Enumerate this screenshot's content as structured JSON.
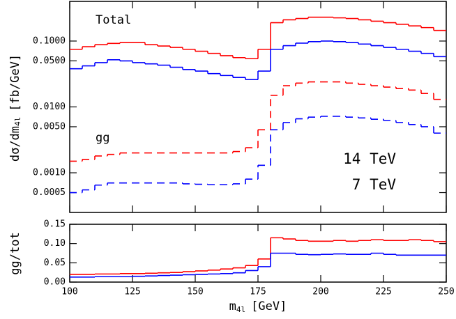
{
  "chart_data": [
    {
      "type": "histogram",
      "ylabel": "dσ/dm",
      "ylabel_sub": "4l",
      "ylabel_unit": "[fb/GeV]",
      "log_y": true,
      "bins": [
        100,
        105,
        110,
        115,
        120,
        125,
        130,
        135,
        140,
        145,
        150,
        155,
        160,
        165,
        170,
        175,
        180,
        185,
        190,
        195,
        200,
        205,
        210,
        215,
        220,
        225,
        230,
        235,
        240,
        245,
        250
      ],
      "xlim": [
        100,
        250
      ],
      "ylim": [
        0.00025,
        0.4
      ],
      "yticks": [
        {
          "value": 0.1,
          "label": "0.1000"
        },
        {
          "value": 0.05,
          "label": "0.0500"
        },
        {
          "value": 0.01,
          "label": "0.0100"
        },
        {
          "value": 0.005,
          "label": "0.0050"
        },
        {
          "value": 0.001,
          "label": "0.0010"
        },
        {
          "value": 0.0005,
          "label": "0.0005"
        }
      ],
      "annotations": [
        {
          "text": "Total"
        },
        {
          "text": "gg"
        },
        {
          "text": "14 TeV",
          "color": "#ff0000"
        },
        {
          "text": "7 TeV",
          "color": "#0000ff"
        }
      ],
      "series": [
        {
          "color": "#ff0000",
          "linestyle": "solid",
          "values": [
            0.075,
            0.082,
            0.088,
            0.092,
            0.095,
            0.095,
            0.088,
            0.084,
            0.08,
            0.075,
            0.07,
            0.065,
            0.06,
            0.056,
            0.054,
            0.075,
            0.19,
            0.21,
            0.22,
            0.23,
            0.23,
            0.225,
            0.22,
            0.21,
            0.2,
            0.19,
            0.18,
            0.17,
            0.16,
            0.145
          ]
        },
        {
          "color": "#0000ff",
          "linestyle": "solid",
          "values": [
            0.038,
            0.042,
            0.047,
            0.052,
            0.05,
            0.047,
            0.045,
            0.043,
            0.04,
            0.037,
            0.035,
            0.032,
            0.03,
            0.028,
            0.026,
            0.035,
            0.075,
            0.085,
            0.093,
            0.098,
            0.1,
            0.098,
            0.095,
            0.09,
            0.085,
            0.08,
            0.075,
            0.07,
            0.065,
            0.058
          ]
        },
        {
          "color": "#ff0000",
          "linestyle": "dashed",
          "values": [
            0.0015,
            0.0016,
            0.0018,
            0.0019,
            0.002,
            0.002,
            0.002,
            0.002,
            0.002,
            0.002,
            0.002,
            0.002,
            0.002,
            0.0021,
            0.0024,
            0.0045,
            0.015,
            0.021,
            0.023,
            0.024,
            0.024,
            0.024,
            0.023,
            0.022,
            0.021,
            0.02,
            0.019,
            0.018,
            0.016,
            0.013
          ]
        },
        {
          "color": "#0000ff",
          "linestyle": "dashed",
          "values": [
            0.0005,
            0.00055,
            0.00065,
            0.0007,
            0.0007,
            0.0007,
            0.0007,
            0.0007,
            0.0007,
            0.00068,
            0.00067,
            0.00066,
            0.00066,
            0.00068,
            0.0008,
            0.0013,
            0.0045,
            0.0058,
            0.0066,
            0.007,
            0.0072,
            0.0072,
            0.007,
            0.0068,
            0.0065,
            0.0062,
            0.0058,
            0.0054,
            0.005,
            0.004
          ]
        }
      ]
    },
    {
      "type": "histogram",
      "ylabel": "gg/tot",
      "xlabel": "m",
      "xlabel_sub": "4l",
      "xlabel_unit": "[GeV]",
      "bins": [
        100,
        105,
        110,
        115,
        120,
        125,
        130,
        135,
        140,
        145,
        150,
        155,
        160,
        165,
        170,
        175,
        180,
        185,
        190,
        195,
        200,
        205,
        210,
        215,
        220,
        225,
        230,
        235,
        240,
        245,
        250
      ],
      "xlim": [
        100,
        250
      ],
      "ylim": [
        0,
        0.15
      ],
      "xticks": [
        100,
        125,
        150,
        175,
        200,
        225,
        250
      ],
      "yticks": [
        {
          "value": 0,
          "label": "0.00"
        },
        {
          "value": 0.05,
          "label": "0.05"
        },
        {
          "value": 0.1,
          "label": "0.10"
        },
        {
          "value": 0.15,
          "label": "0.15"
        }
      ],
      "series": [
        {
          "color": "#ff0000",
          "linestyle": "solid",
          "values": [
            0.02,
            0.02,
            0.021,
            0.021,
            0.022,
            0.022,
            0.023,
            0.024,
            0.025,
            0.027,
            0.029,
            0.031,
            0.034,
            0.037,
            0.043,
            0.06,
            0.115,
            0.112,
            0.108,
            0.106,
            0.106,
            0.108,
            0.106,
            0.108,
            0.11,
            0.108,
            0.108,
            0.11,
            0.108,
            0.105
          ]
        },
        {
          "color": "#0000ff",
          "linestyle": "solid",
          "values": [
            0.013,
            0.013,
            0.014,
            0.014,
            0.014,
            0.015,
            0.016,
            0.017,
            0.018,
            0.019,
            0.02,
            0.021,
            0.022,
            0.024,
            0.03,
            0.04,
            0.075,
            0.075,
            0.072,
            0.071,
            0.072,
            0.073,
            0.072,
            0.072,
            0.075,
            0.072,
            0.07,
            0.07,
            0.07,
            0.07
          ]
        }
      ]
    }
  ]
}
